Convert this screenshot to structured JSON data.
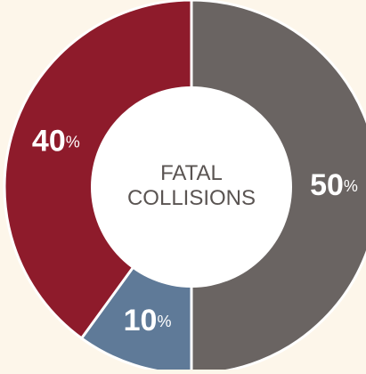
{
  "chart_data": {
    "type": "donut",
    "title": "FATAL COLLISIONS",
    "categories": [
      null,
      null,
      null
    ],
    "values": [
      50,
      10,
      40
    ],
    "value_labels": [
      "50%",
      "10%",
      "40%"
    ],
    "colors": [
      "#6a6462",
      "#5f7a98",
      "#8e1b2b"
    ]
  }
}
